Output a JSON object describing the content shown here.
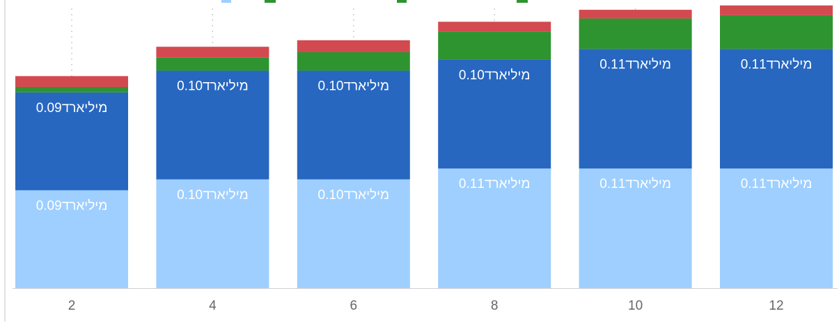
{
  "chart_data": {
    "type": "bar",
    "stacked": true,
    "categories": [
      "2",
      "4",
      "6",
      "8",
      "10",
      "12"
    ],
    "series": [
      {
        "color": "#9ecfff",
        "values": [
          0.09,
          0.1,
          0.1,
          0.11,
          0.11,
          0.11
        ],
        "labels": [
          "מיליארד0.09",
          "מיליארד0.10",
          "מיליארד0.10",
          "מיליארד0.11",
          "מיליארד0.11",
          "מיליארד0.11"
        ]
      },
      {
        "color": "#2767c0",
        "values": [
          0.09,
          0.1,
          0.1,
          0.1,
          0.11,
          0.11
        ],
        "labels": [
          "מיליארד0.09",
          "מיליארד0.10",
          "מיליארד0.10",
          "מיליארד0.10",
          "מיליארד0.11",
          "מיליארד0.11"
        ]
      },
      {
        "color": "#2e9430",
        "values": [
          0.005,
          0.012,
          0.017,
          0.026,
          0.028,
          0.031
        ],
        "labels": []
      },
      {
        "color": "#d24a4f",
        "values": [
          0.01,
          0.01,
          0.011,
          0.009,
          0.008,
          0.009
        ],
        "labels": []
      }
    ],
    "ylim": [
      0,
      0.265
    ],
    "grid": "vertical-dotted",
    "legend": "top (cropped)"
  }
}
